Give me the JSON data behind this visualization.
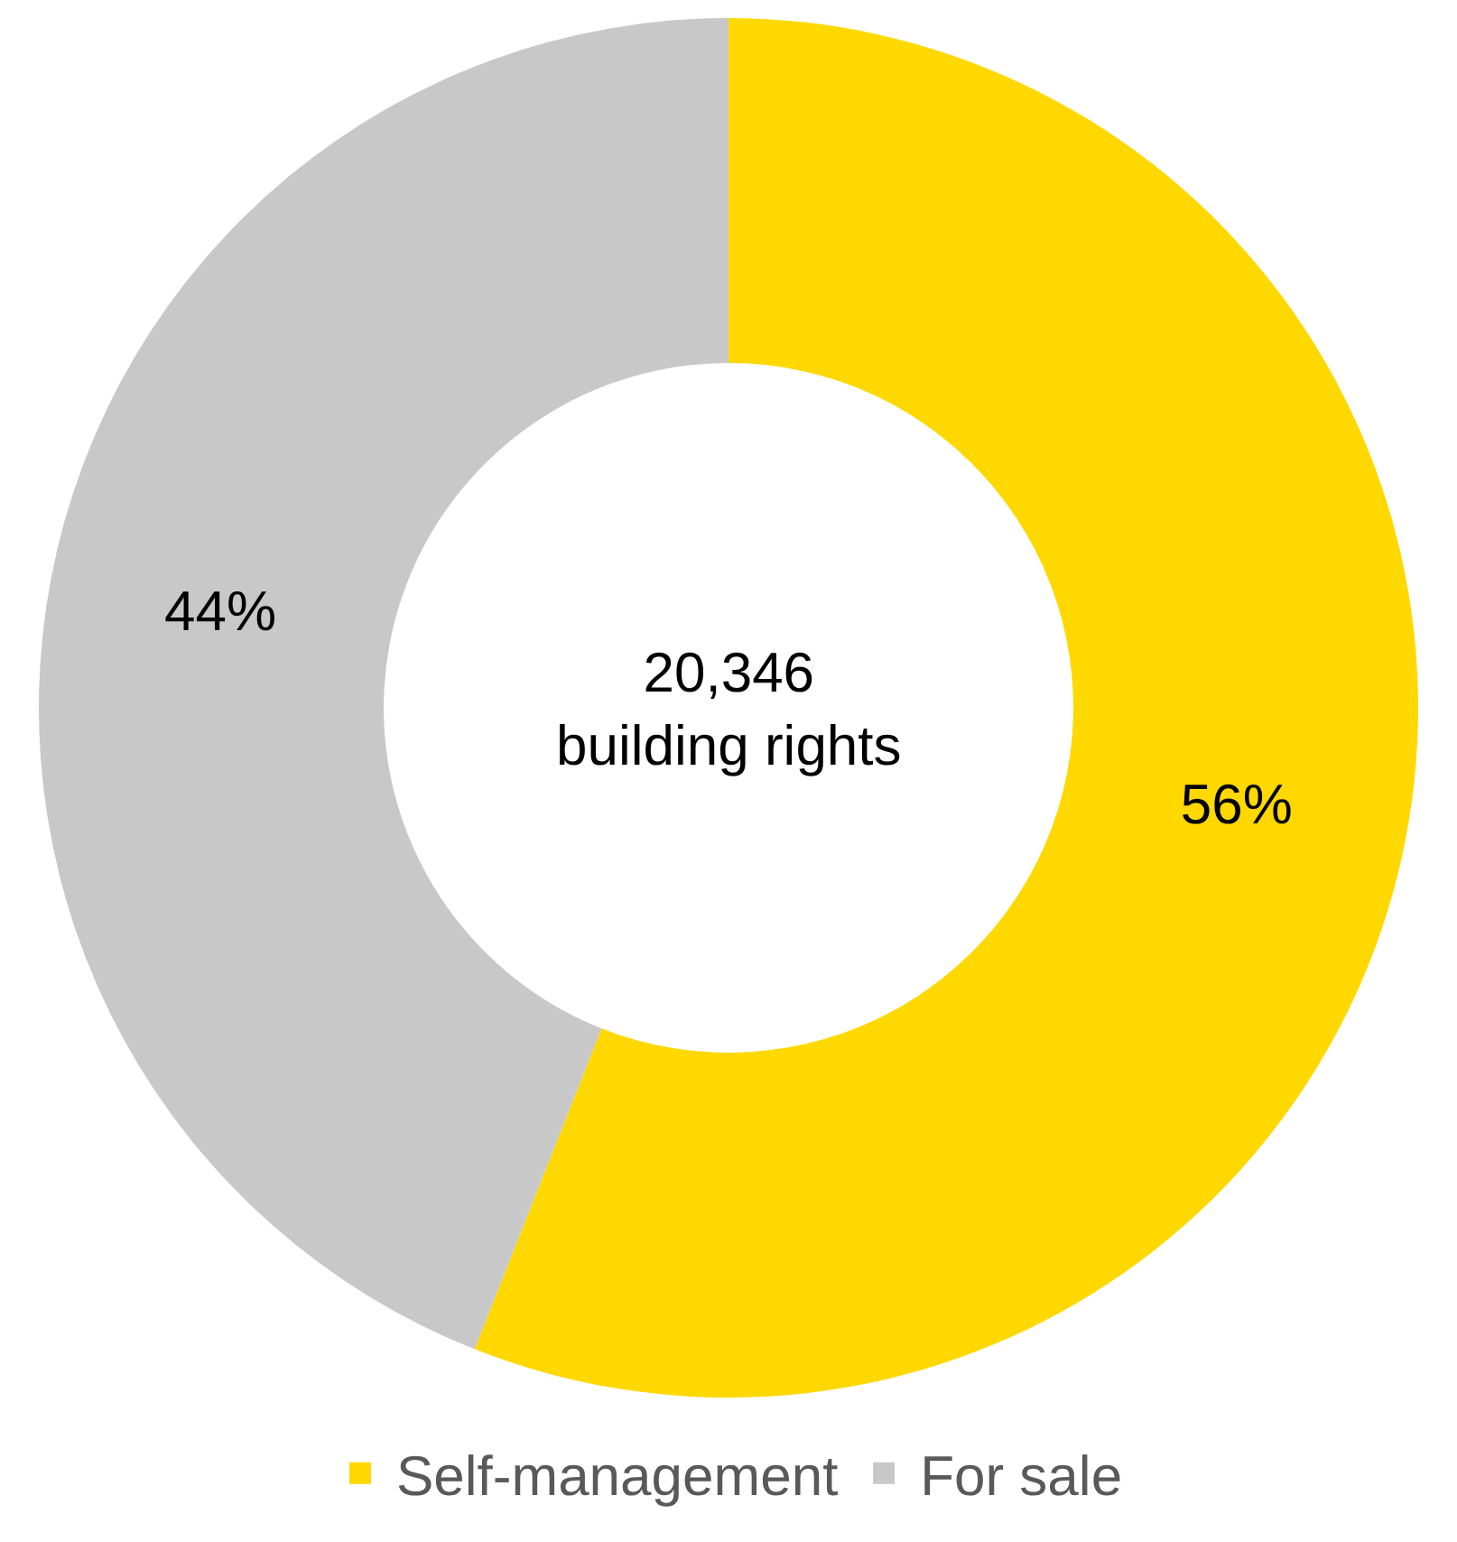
{
  "chart_data": {
    "type": "donut",
    "categories": [
      "Self-management",
      "For sale"
    ],
    "values": [
      56,
      44
    ],
    "colors": [
      "#ffd800",
      "#c8c8c8"
    ],
    "value_labels": [
      "56%",
      "44%"
    ],
    "annotations": [
      "20,346\nbuilding rights"
    ],
    "legend": "bottom"
  }
}
